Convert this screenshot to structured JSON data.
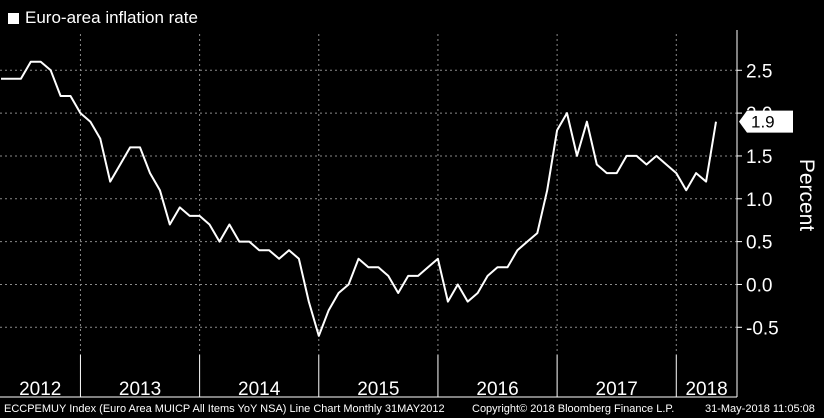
{
  "legend": {
    "label": "Euro-area inflation rate",
    "color": "#ffffff"
  },
  "colors": {
    "background": "#000000",
    "line": "#ffffff",
    "grid": "#8a8a8a"
  },
  "footer": {
    "left": "ECCPEMUY Index (Euro Area MUICP All Items YoY NSA) Line Chart  Monthly 31MAY2012",
    "center": "Copyright© 2018 Bloomberg Finance L.P.",
    "right": "31-May-2018 11:05:08"
  },
  "chart_data": {
    "type": "line",
    "title": "",
    "xlabel": "",
    "ylabel": "Percent",
    "ylim": [
      -0.8,
      2.9
    ],
    "yticks": [
      -0.5,
      0.0,
      0.5,
      1.0,
      1.5,
      2.0,
      2.5
    ],
    "ytick_labels": [
      "-0.5",
      "0.0",
      "0.5",
      "1.0",
      "1.5",
      "2.0",
      "2.5"
    ],
    "year_labels": [
      "2012",
      "2013",
      "2014",
      "2015",
      "2016",
      "2017",
      "2018"
    ],
    "grid": true,
    "last_value_label": "1.9",
    "x_start": "2012-05",
    "x_end": "2018-05",
    "series": [
      {
        "name": "Euro-area inflation rate",
        "x": [
          "2012-05",
          "2012-06",
          "2012-07",
          "2012-08",
          "2012-09",
          "2012-10",
          "2012-11",
          "2012-12",
          "2013-01",
          "2013-02",
          "2013-03",
          "2013-04",
          "2013-05",
          "2013-06",
          "2013-07",
          "2013-08",
          "2013-09",
          "2013-10",
          "2013-11",
          "2013-12",
          "2014-01",
          "2014-02",
          "2014-03",
          "2014-04",
          "2014-05",
          "2014-06",
          "2014-07",
          "2014-08",
          "2014-09",
          "2014-10",
          "2014-11",
          "2014-12",
          "2015-01",
          "2015-02",
          "2015-03",
          "2015-04",
          "2015-05",
          "2015-06",
          "2015-07",
          "2015-08",
          "2015-09",
          "2015-10",
          "2015-11",
          "2015-12",
          "2016-01",
          "2016-02",
          "2016-03",
          "2016-04",
          "2016-05",
          "2016-06",
          "2016-07",
          "2016-08",
          "2016-09",
          "2016-10",
          "2016-11",
          "2016-12",
          "2017-01",
          "2017-02",
          "2017-03",
          "2017-04",
          "2017-05",
          "2017-06",
          "2017-07",
          "2017-08",
          "2017-09",
          "2017-10",
          "2017-11",
          "2017-12",
          "2018-01",
          "2018-02",
          "2018-03",
          "2018-04",
          "2018-05"
        ],
        "values": [
          2.4,
          2.4,
          2.4,
          2.6,
          2.6,
          2.5,
          2.2,
          2.2,
          2.0,
          1.9,
          1.7,
          1.2,
          1.4,
          1.6,
          1.6,
          1.3,
          1.1,
          0.7,
          0.9,
          0.8,
          0.8,
          0.7,
          0.5,
          0.7,
          0.5,
          0.5,
          0.4,
          0.4,
          0.3,
          0.4,
          0.3,
          -0.2,
          -0.6,
          -0.3,
          -0.1,
          0.0,
          0.3,
          0.2,
          0.2,
          0.1,
          -0.1,
          0.1,
          0.1,
          0.2,
          0.3,
          -0.2,
          0.0,
          -0.2,
          -0.1,
          0.1,
          0.2,
          0.2,
          0.4,
          0.5,
          0.6,
          1.1,
          1.8,
          2.0,
          1.5,
          1.9,
          1.4,
          1.3,
          1.3,
          1.5,
          1.5,
          1.4,
          1.5,
          1.4,
          1.3,
          1.1,
          1.3,
          1.2,
          1.9
        ]
      }
    ]
  }
}
